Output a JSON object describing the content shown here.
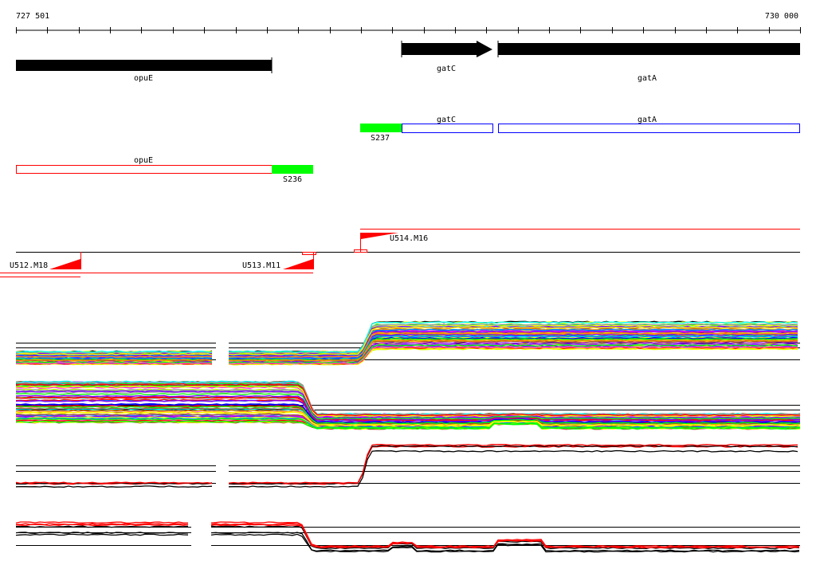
{
  "ruler": {
    "start_label": "727 501",
    "end_label": "730 000",
    "tick_count": 26
  },
  "genes": [
    {
      "name": "opuE",
      "strand": "-"
    },
    {
      "name": "gatC",
      "strand": "+"
    },
    {
      "name": "gatA",
      "strand": "+"
    }
  ],
  "annotations": {
    "gatC": "gatC",
    "gatA": "gatA",
    "opuE": "opuE",
    "S237": "S237",
    "S236": "S236"
  },
  "transcription_units": [
    "U512.M18",
    "U513.M11",
    "U514.M16"
  ],
  "colors": {
    "gene": "#000000",
    "cds_plus": "#0000ff",
    "cds_minus": "#ff0000",
    "segment": "#00ff00",
    "tu": "#ff0000",
    "profile_palette": [
      "#ff00ff",
      "#00ffff",
      "#ff8c00",
      "#00ff00",
      "#0080ff",
      "#ffff00",
      "#a0a0a0",
      "#ff0000",
      "#8000ff",
      "#a0522d",
      "#ff69b4",
      "#0000ff",
      "#ccff00"
    ]
  }
}
